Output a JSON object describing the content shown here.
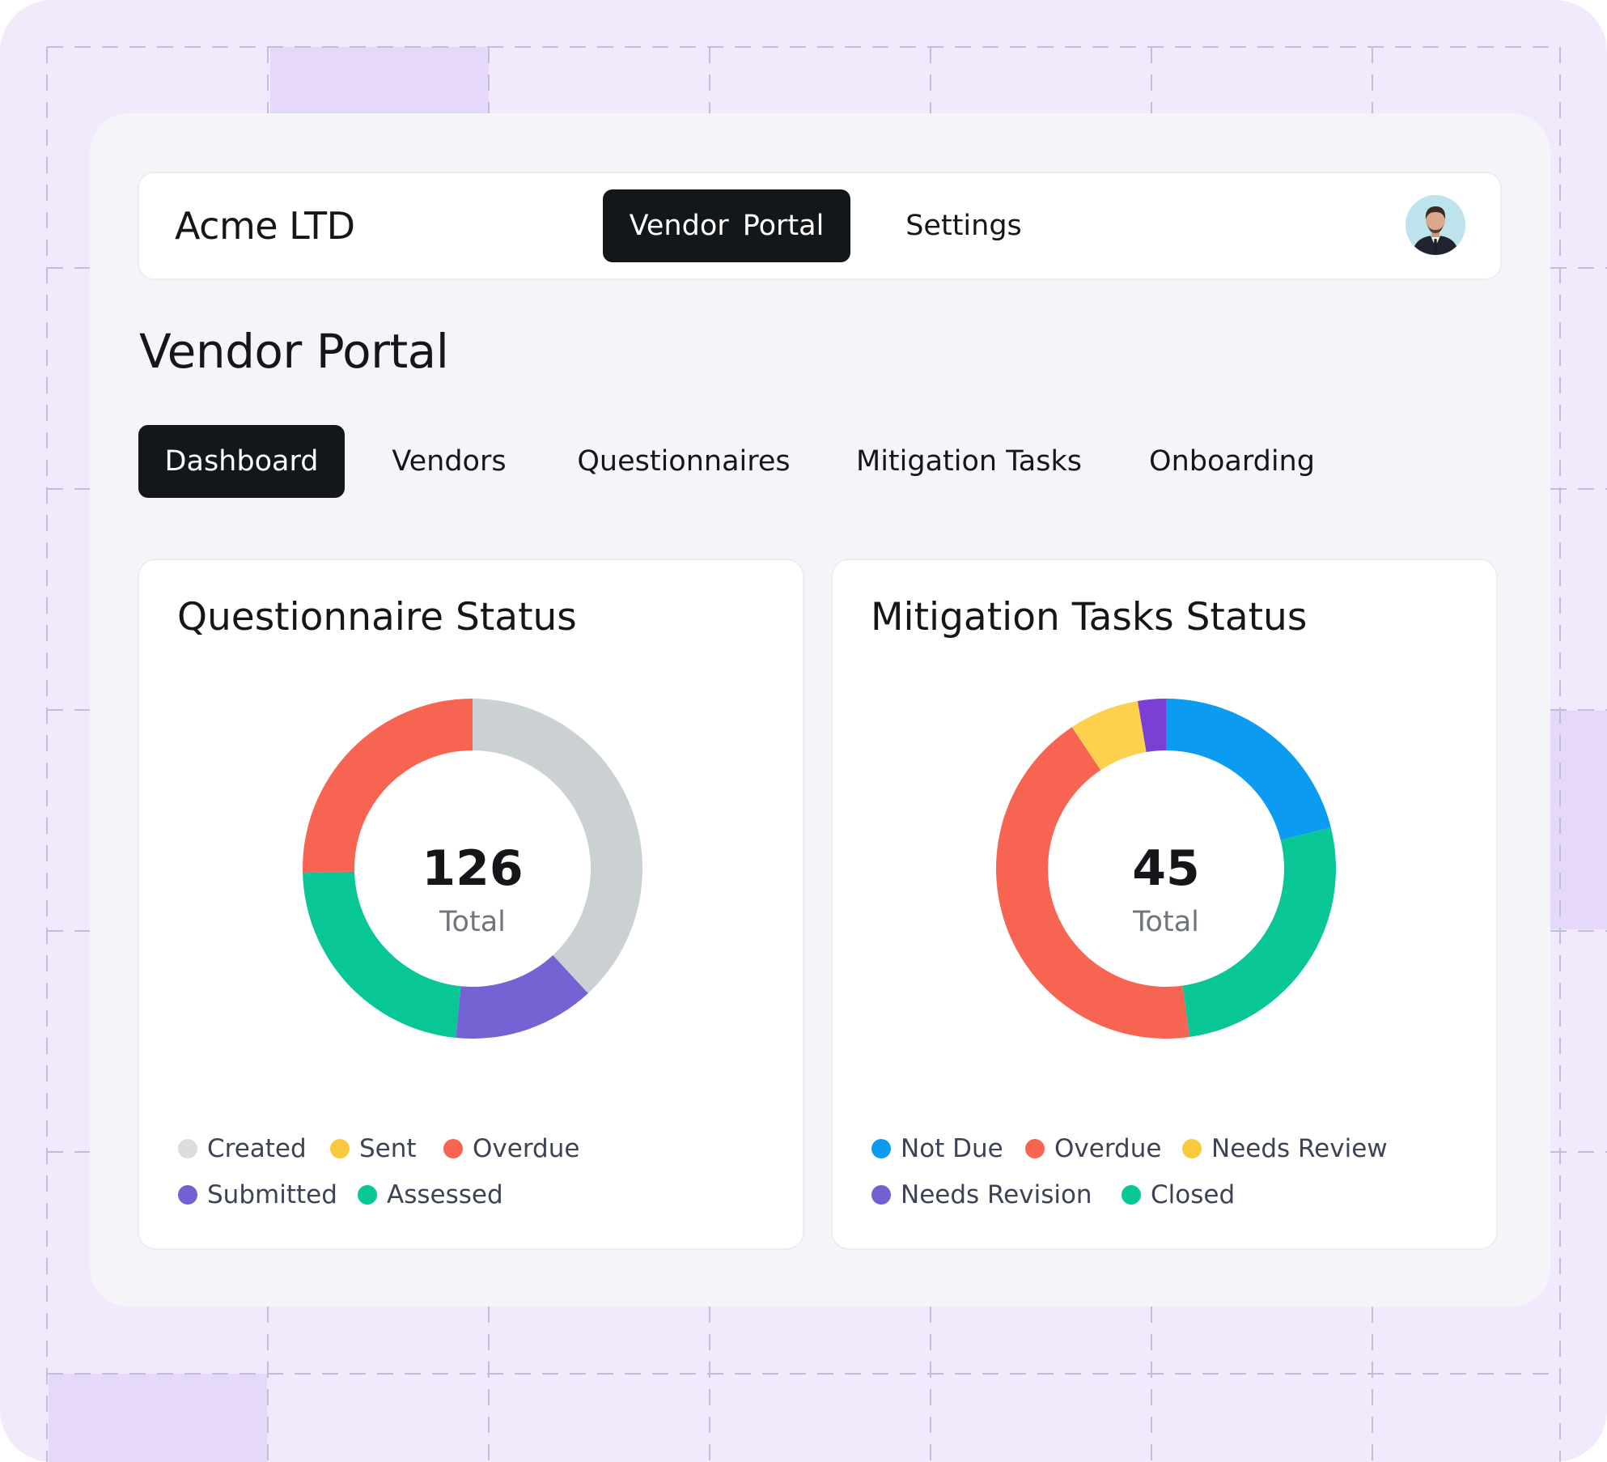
{
  "colors": {
    "background": "#f3e9fd",
    "card": "#f5f5f9",
    "dark": "#14171a"
  },
  "header": {
    "brand": "Acme LTD",
    "nav": [
      {
        "label": "Vendor Portal",
        "active": true
      },
      {
        "label": "Settings",
        "active": false
      }
    ],
    "avatar_icon": "user-avatar"
  },
  "page": {
    "title": "Vendor Portal",
    "tabs": [
      {
        "label": "Dashboard",
        "active": true
      },
      {
        "label": "Vendors",
        "active": false
      },
      {
        "label": "Questionnaires",
        "active": false
      },
      {
        "label": "Mitigation Tasks",
        "active": false
      },
      {
        "label": "Onboarding",
        "active": false
      }
    ]
  },
  "chart_data": [
    {
      "type": "pie",
      "title": "Questionnaire Status",
      "total": 126,
      "total_label": "Total",
      "legend": [
        "Created",
        "Sent",
        "Overdue",
        "Submitted",
        "Assessed"
      ],
      "legend_colors": [
        "#dcdcdc",
        "#fbc93d",
        "#f86452",
        "#7560d2",
        "#09c697"
      ],
      "segments": [
        {
          "name": "Created",
          "value": 48,
          "color": "#cbd1d3"
        },
        {
          "name": "Submitted",
          "value": 17,
          "color": "#7563d3"
        },
        {
          "name": "Assessed",
          "value": 29,
          "color": "#09c697"
        },
        {
          "name": "Overdue",
          "value": 32,
          "color": "#f86452"
        }
      ]
    },
    {
      "type": "pie",
      "title": "Mitigation Tasks Status",
      "total": 45,
      "total_label": "Total",
      "legend": [
        "Not Due",
        "Overdue",
        "Needs Review",
        "Needs Revision",
        "Closed"
      ],
      "legend_colors": [
        "#0b9bf0",
        "#f86452",
        "#fbc93d",
        "#7560d2",
        "#09c697"
      ],
      "segments": [
        {
          "name": "Not Due",
          "value": 9.5,
          "color": "#0b9bf0"
        },
        {
          "name": "Closed",
          "value": 12,
          "color": "#09c697"
        },
        {
          "name": "Overdue",
          "value": 19.3,
          "color": "#f86452"
        },
        {
          "name": "Needs Review",
          "value": 3,
          "color": "#fdd14d"
        },
        {
          "name": "Needs Revision",
          "value": 1.2,
          "color": "#7a3fd4"
        }
      ]
    }
  ]
}
